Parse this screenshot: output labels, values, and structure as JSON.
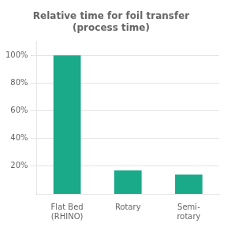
{
  "chart_data": {
    "type": "bar",
    "title": "Relative time for foil transfer\n(process time)",
    "categories": [
      "Flat Bed\n(RHINO)",
      "Rotary",
      "Semi-\nrotary"
    ],
    "values": [
      100,
      17,
      14
    ],
    "color": "#1aaa8a",
    "ylim": [
      0,
      110
    ],
    "yticks": [
      {
        "value": 20,
        "label": "20%"
      },
      {
        "value": 40,
        "label": "40%"
      },
      {
        "value": 60,
        "label": "60%"
      },
      {
        "value": 80,
        "label": "80%"
      },
      {
        "value": 100,
        "label": "100%"
      }
    ],
    "grid": true
  }
}
